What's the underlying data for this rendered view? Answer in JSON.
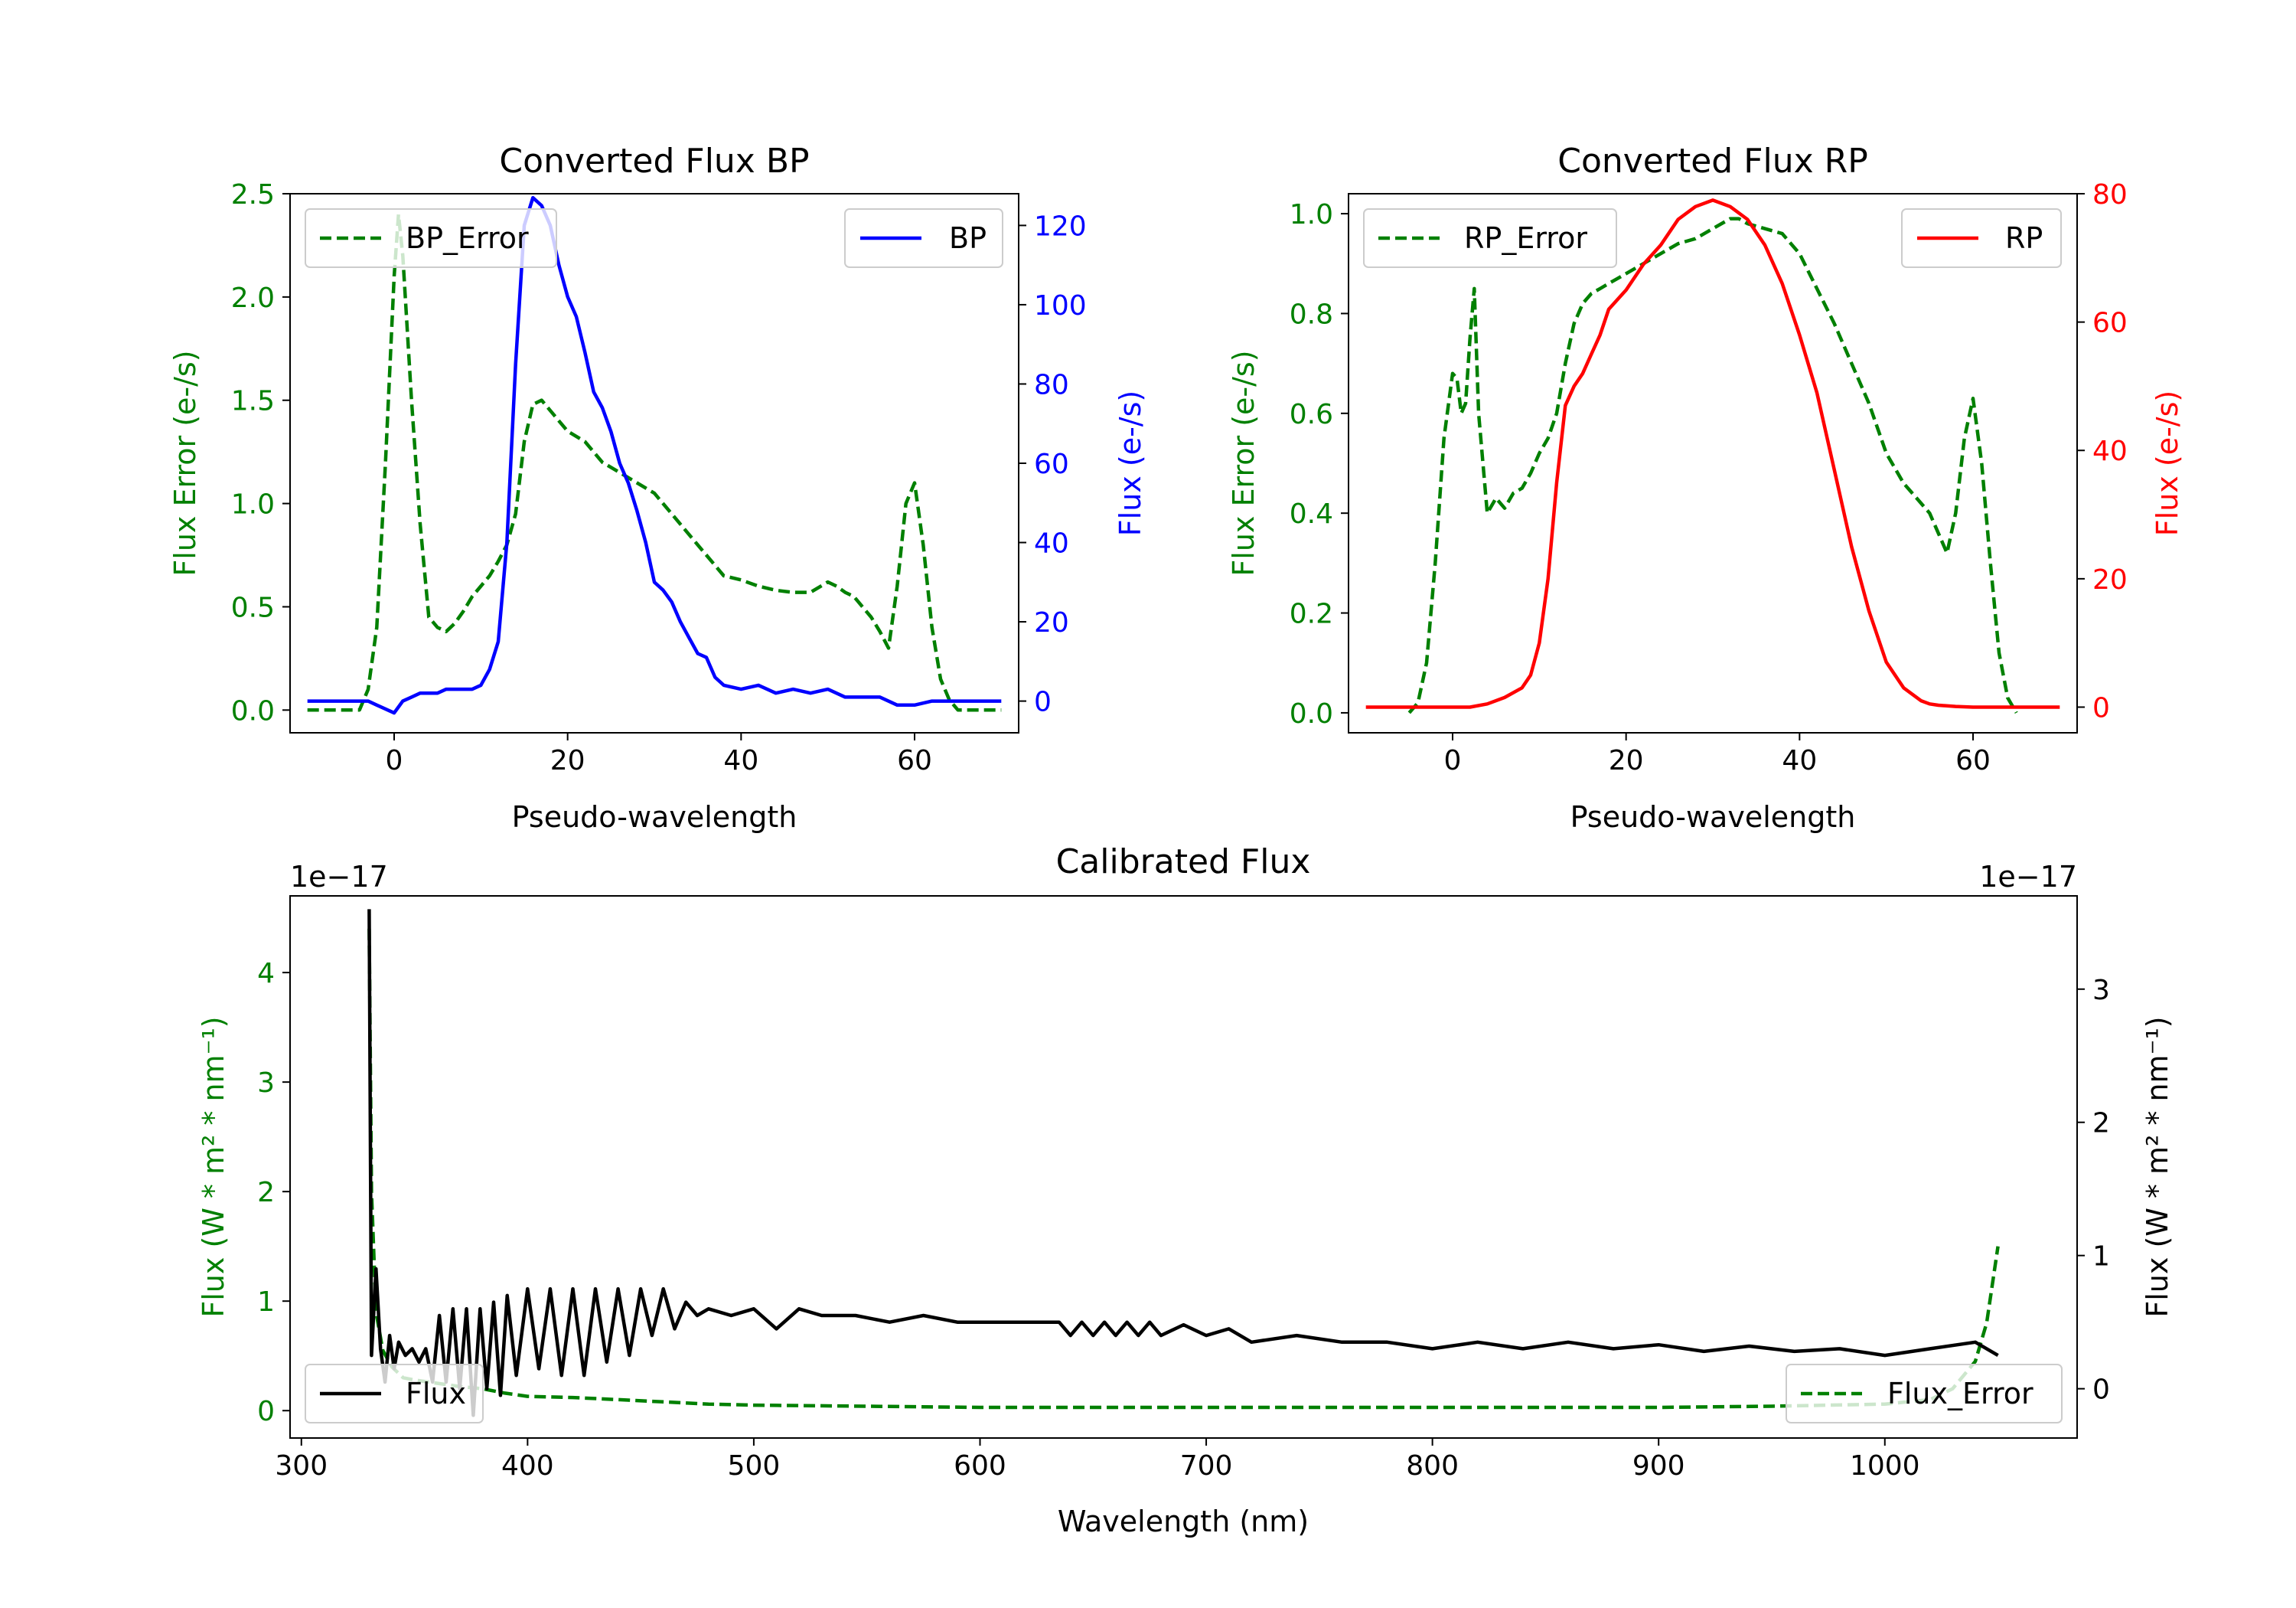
{
  "colors": {
    "bp": "#0000ff",
    "rp": "#ff0000",
    "error": "#008000",
    "flux": "#000000",
    "axis": "#000000",
    "legend_border": "#cccccc"
  },
  "chart_data": [
    {
      "id": "bp",
      "type": "line",
      "title": "Converted Flux BP",
      "xlabel": "Pseudo-wavelength",
      "xlim": [
        -12,
        72
      ],
      "xticks": [
        0,
        20,
        40,
        60
      ],
      "left_axis": {
        "label": "Flux Error (e-/s)",
        "color": "#008000",
        "ylim": [
          -0.11,
          2.5
        ],
        "ticks": [
          0.0,
          0.5,
          1.0,
          1.5,
          2.0,
          2.5
        ],
        "tick_labels": [
          "0.0",
          "0.5",
          "1.0",
          "1.5",
          "2.0",
          "2.5"
        ]
      },
      "right_axis": {
        "label": "Flux (e-/s)",
        "color": "#0000ff",
        "ylim": [
          -8,
          128
        ],
        "ticks": [
          0,
          20,
          40,
          60,
          80,
          100,
          120
        ],
        "tick_labels": [
          "0",
          "20",
          "40",
          "60",
          "80",
          "100",
          "120"
        ]
      },
      "series": [
        {
          "name": "BP_Error",
          "axis": "left",
          "style": "dashed",
          "color": "#008000",
          "x": [
            -10,
            -4,
            -3,
            -2,
            -1,
            0,
            0.5,
            1,
            2,
            3,
            4,
            5,
            6,
            7,
            8,
            9,
            10,
            11,
            12,
            13,
            14,
            15,
            16,
            17,
            18,
            19,
            20,
            22,
            24,
            26,
            28,
            30,
            32,
            34,
            36,
            38,
            40,
            42,
            44,
            46,
            48,
            50,
            51,
            52,
            53,
            54,
            55,
            56,
            57,
            58,
            59,
            60,
            61,
            62,
            63,
            64,
            65,
            66,
            70
          ],
          "y": [
            0.0,
            0.0,
            0.1,
            0.4,
            1.2,
            2.1,
            2.4,
            2.2,
            1.5,
            0.9,
            0.45,
            0.4,
            0.38,
            0.42,
            0.48,
            0.55,
            0.6,
            0.65,
            0.72,
            0.8,
            0.95,
            1.3,
            1.48,
            1.5,
            1.45,
            1.4,
            1.35,
            1.3,
            1.2,
            1.15,
            1.1,
            1.05,
            0.95,
            0.85,
            0.75,
            0.65,
            0.63,
            0.6,
            0.58,
            0.57,
            0.57,
            0.62,
            0.6,
            0.57,
            0.55,
            0.5,
            0.45,
            0.38,
            0.3,
            0.6,
            1.0,
            1.1,
            0.8,
            0.4,
            0.15,
            0.05,
            0.0,
            0.0,
            0.0
          ]
        },
        {
          "name": "BP",
          "axis": "right",
          "style": "solid",
          "color": "#0000ff",
          "x": [
            -10,
            -4,
            -3,
            -2,
            -1,
            0,
            1,
            2,
            3,
            4,
            5,
            6,
            7,
            8,
            9,
            10,
            11,
            12,
            13,
            14,
            15,
            16,
            17,
            18,
            19,
            20,
            21,
            22,
            23,
            24,
            25,
            26,
            27,
            28,
            29,
            30,
            31,
            32,
            33,
            34,
            35,
            36,
            37,
            38,
            40,
            42,
            44,
            46,
            48,
            50,
            52,
            54,
            56,
            58,
            60,
            62,
            64,
            66,
            70
          ],
          "y": [
            0,
            0,
            0,
            -1,
            -2,
            -3,
            0,
            1,
            2,
            2,
            2,
            3,
            3,
            3,
            3,
            4,
            8,
            15,
            40,
            85,
            120,
            127,
            125,
            120,
            110,
            102,
            97,
            88,
            78,
            74,
            68,
            60,
            55,
            48,
            40,
            30,
            28,
            25,
            20,
            16,
            12,
            11,
            6,
            4,
            3,
            4,
            2,
            3,
            2,
            3,
            1,
            1,
            1,
            -1,
            -1,
            0,
            0,
            0,
            0
          ]
        }
      ],
      "legend": [
        {
          "label": "BP_Error",
          "position": "upper-left"
        },
        {
          "label": "BP",
          "position": "upper-right"
        }
      ]
    },
    {
      "id": "rp",
      "type": "line",
      "title": "Converted Flux RP",
      "xlabel": "Pseudo-wavelength",
      "xlim": [
        -12,
        72
      ],
      "xticks": [
        0,
        20,
        40,
        60
      ],
      "left_axis": {
        "label": "Flux Error (e-/s)",
        "color": "#008000",
        "ylim": [
          -0.04,
          1.04
        ],
        "ticks": [
          0.0,
          0.2,
          0.4,
          0.6,
          0.8,
          1.0
        ],
        "tick_labels": [
          "0.0",
          "0.2",
          "0.4",
          "0.6",
          "0.8",
          "1.0"
        ]
      },
      "right_axis": {
        "label": "Flux (e-/s)",
        "color": "#ff0000",
        "ylim": [
          -4,
          80
        ],
        "ticks": [
          0,
          20,
          40,
          60,
          80
        ],
        "tick_labels": [
          "0",
          "20",
          "40",
          "60",
          "80"
        ]
      },
      "series": [
        {
          "name": "RP_Error",
          "axis": "left",
          "style": "dashed",
          "color": "#008000",
          "x": [
            -5,
            -4,
            -3,
            -2,
            -1,
            0,
            0.5,
            1,
            1.5,
            2,
            2.5,
            3,
            4,
            5,
            6,
            7,
            8,
            9,
            10,
            11,
            12,
            13,
            14,
            15,
            16,
            17,
            18,
            20,
            22,
            24,
            26,
            28,
            30,
            32,
            33,
            34,
            36,
            38,
            40,
            42,
            44,
            46,
            48,
            50,
            52,
            54,
            55,
            56,
            57,
            58,
            59,
            60,
            61,
            62,
            63,
            64,
            65
          ],
          "y": [
            0.0,
            0.02,
            0.1,
            0.3,
            0.55,
            0.68,
            0.67,
            0.6,
            0.62,
            0.75,
            0.85,
            0.6,
            0.4,
            0.43,
            0.41,
            0.44,
            0.45,
            0.48,
            0.52,
            0.55,
            0.6,
            0.7,
            0.78,
            0.82,
            0.84,
            0.85,
            0.86,
            0.88,
            0.9,
            0.92,
            0.94,
            0.95,
            0.97,
            0.99,
            0.99,
            0.98,
            0.97,
            0.96,
            0.92,
            0.85,
            0.78,
            0.7,
            0.62,
            0.52,
            0.46,
            0.42,
            0.4,
            0.36,
            0.32,
            0.4,
            0.55,
            0.63,
            0.5,
            0.3,
            0.12,
            0.03,
            0.0
          ]
        },
        {
          "name": "RP",
          "axis": "right",
          "style": "solid",
          "color": "#ff0000",
          "x": [
            -10,
            -4,
            0,
            2,
            4,
            6,
            8,
            9,
            10,
            11,
            12,
            13,
            14,
            15,
            16,
            17,
            18,
            20,
            22,
            24,
            26,
            28,
            30,
            32,
            34,
            36,
            38,
            40,
            42,
            44,
            46,
            48,
            50,
            52,
            54,
            55,
            56,
            58,
            60,
            62,
            64,
            70
          ],
          "y": [
            0,
            0,
            0,
            0,
            0.5,
            1.5,
            3,
            5,
            10,
            20,
            35,
            47,
            50,
            52,
            55,
            58,
            62,
            65,
            69,
            72,
            76,
            78,
            79,
            78,
            76,
            72,
            66,
            58,
            49,
            37,
            25,
            15,
            7,
            3,
            1,
            0.5,
            0.3,
            0.1,
            0,
            0,
            0,
            0
          ]
        }
      ],
      "legend": [
        {
          "label": "RP_Error",
          "position": "upper-left"
        },
        {
          "label": "RP",
          "position": "upper-right"
        }
      ]
    },
    {
      "id": "calib",
      "type": "line",
      "title": "Calibrated Flux",
      "xlabel": "Wavelength (nm)",
      "xlim": [
        295,
        1085
      ],
      "xticks": [
        300,
        400,
        500,
        600,
        700,
        800,
        900,
        1000
      ],
      "left_axis": {
        "label": "Flux (W * m² * nm⁻¹)",
        "color": "#008000",
        "offset_text": "1e−17",
        "ylim": [
          -0.25,
          4.7
        ],
        "ticks": [
          0,
          1,
          2,
          3,
          4
        ],
        "tick_labels": [
          "0",
          "1",
          "2",
          "3",
          "4"
        ]
      },
      "right_axis": {
        "label": "Flux (W * m² * nm⁻¹)",
        "color": "#000000",
        "offset_text": "1e−17",
        "ylim": [
          -0.37,
          3.7
        ],
        "ticks": [
          0,
          1,
          2,
          3
        ],
        "tick_labels": [
          "0",
          "1",
          "2",
          "3"
        ]
      },
      "series": [
        {
          "name": "Flux_Error",
          "axis": "left",
          "style": "dashed",
          "color": "#008000",
          "x": [
            330,
            331,
            333,
            336,
            340,
            345,
            350,
            360,
            370,
            380,
            390,
            400,
            420,
            440,
            460,
            480,
            500,
            550,
            600,
            650,
            700,
            750,
            800,
            850,
            900,
            950,
            1000,
            1020,
            1030,
            1040,
            1045,
            1050
          ],
          "y": [
            4.4,
            2.0,
            0.9,
            0.55,
            0.4,
            0.3,
            0.28,
            0.25,
            0.22,
            0.2,
            0.16,
            0.13,
            0.12,
            0.1,
            0.08,
            0.06,
            0.05,
            0.04,
            0.03,
            0.03,
            0.03,
            0.03,
            0.03,
            0.03,
            0.03,
            0.04,
            0.06,
            0.1,
            0.2,
            0.45,
            0.8,
            1.5
          ]
        },
        {
          "name": "Flux",
          "axis": "right",
          "style": "solid",
          "color": "#000000",
          "x": [
            330,
            331,
            333,
            335,
            337,
            339,
            341,
            343,
            346,
            349,
            352,
            355,
            358,
            361,
            364,
            367,
            370,
            373,
            376,
            379,
            382,
            385,
            388,
            391,
            395,
            400,
            405,
            410,
            415,
            420,
            425,
            430,
            435,
            440,
            445,
            450,
            455,
            460,
            465,
            470,
            475,
            480,
            490,
            500,
            510,
            520,
            530,
            545,
            560,
            575,
            590,
            605,
            620,
            635,
            640,
            645,
            650,
            655,
            660,
            665,
            670,
            675,
            680,
            690,
            700,
            710,
            720,
            740,
            760,
            780,
            800,
            820,
            840,
            860,
            880,
            900,
            920,
            940,
            960,
            980,
            1000,
            1020,
            1040,
            1050
          ],
          "y": [
            3.6,
            0.25,
            0.9,
            0.3,
            0.05,
            0.4,
            0.15,
            0.35,
            0.25,
            0.3,
            0.2,
            0.3,
            0.05,
            0.55,
            0.05,
            0.6,
            0.0,
            0.6,
            -0.2,
            0.6,
            0.0,
            0.65,
            -0.05,
            0.7,
            0.1,
            0.75,
            0.15,
            0.75,
            0.1,
            0.75,
            0.1,
            0.75,
            0.2,
            0.75,
            0.25,
            0.75,
            0.4,
            0.75,
            0.45,
            0.65,
            0.55,
            0.6,
            0.55,
            0.6,
            0.45,
            0.6,
            0.55,
            0.55,
            0.5,
            0.55,
            0.5,
            0.5,
            0.5,
            0.5,
            0.4,
            0.5,
            0.4,
            0.5,
            0.4,
            0.5,
            0.4,
            0.5,
            0.4,
            0.48,
            0.4,
            0.45,
            0.35,
            0.4,
            0.35,
            0.35,
            0.3,
            0.35,
            0.3,
            0.35,
            0.3,
            0.33,
            0.28,
            0.32,
            0.28,
            0.3,
            0.25,
            0.3,
            0.35,
            0.25
          ]
        }
      ],
      "legend": [
        {
          "label": "Flux",
          "position": "lower-left"
        },
        {
          "label": "Flux_Error",
          "position": "lower-right"
        }
      ]
    }
  ]
}
